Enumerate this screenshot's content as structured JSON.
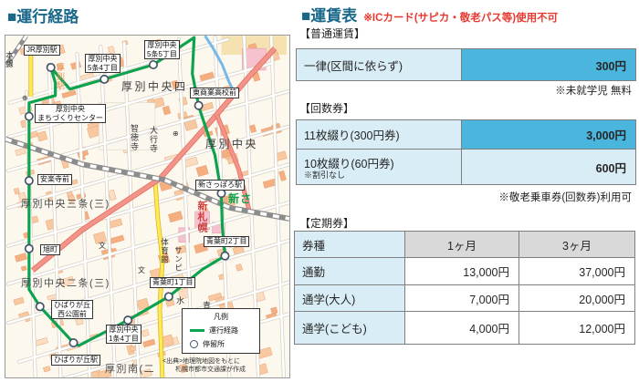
{
  "page": {
    "left_title": "■運行経路",
    "right_title": "■運賃表",
    "right_note": "※ICカード(サピカ・敬老パス等)使用不可"
  },
  "fares": {
    "basic": {
      "section": "【普通運賃】",
      "row_label": "一律(区間に依らず)",
      "row_value": "300円",
      "note": "※未就学児 無料"
    },
    "kaisuken": {
      "section": "【回数券】",
      "rows": [
        {
          "label": "11枚綴り(300円券)",
          "sub": "",
          "value": "3,000円"
        },
        {
          "label": "10枚綴り(60円券)",
          "sub": "※割引なし",
          "value": "600円"
        }
      ],
      "note": "※敬老乗車券(回数券)利用可"
    },
    "teiki": {
      "section": "【定期券】",
      "headers": [
        "券種",
        "1ヶ月",
        "3ヶ月"
      ],
      "rows": [
        {
          "type": "通勤",
          "m1": "13,000円",
          "m3": "37,000円"
        },
        {
          "type": "通学(大人)",
          "m1": "7,000円",
          "m3": "20,000円"
        },
        {
          "type": "通学(こども)",
          "m1": "4,000円",
          "m3": "12,000円"
        }
      ]
    }
  },
  "map": {
    "stops": [
      {
        "label": "JR厚別駅"
      },
      {
        "label": "厚別中央\n5条4丁目"
      },
      {
        "label": "厚別中央\n5条5丁目"
      },
      {
        "label": "東商業高校前"
      },
      {
        "label": "厚別中央\nまちづくりセンター"
      },
      {
        "label": "安楽寺前"
      },
      {
        "label": "旭町"
      },
      {
        "label": "ひばりが丘\n西公園前"
      },
      {
        "label": "厚別中央\n1条4丁目"
      },
      {
        "label": "ひばりが丘駅"
      },
      {
        "label": "青葉町1丁目"
      },
      {
        "label": "青葉町2丁目"
      },
      {
        "label": "新さっぽろ駅"
      }
    ],
    "areas": [
      {
        "text": "厚別中央四"
      },
      {
        "text": "厚別中央"
      },
      {
        "text": "厚別中央三条(三)"
      },
      {
        "text": "厚別中央二条(三)"
      },
      {
        "text": "厚別南(二"
      },
      {
        "text": "智徳寺"
      },
      {
        "text": "大行寺"
      },
      {
        "text": "新札幌"
      },
      {
        "text": "体育館"
      },
      {
        "text": "サンピ"
      },
      {
        "text": "水"
      },
      {
        "text": "青"
      },
      {
        "text": "厚別駅"
      },
      {
        "text": "本線"
      },
      {
        "text": "新さ"
      }
    ],
    "symbols": [
      {
        "glyph": "⊕"
      },
      {
        "glyph": "⊕"
      },
      {
        "glyph": "文"
      },
      {
        "glyph": "文"
      }
    ],
    "legend": {
      "title": "凡例",
      "route": "運行経路",
      "stop": "停留所"
    },
    "attribution1": "<出典>地理院地図をもとに",
    "attribution2": "札幌市都市交通課が作成"
  },
  "colors": {
    "title_teal": "#19688a",
    "warning_red": "#e8392f",
    "cell_light_blue": "#d9edf6",
    "cell_cyan": "#4ab6de",
    "cell_gray": "#d9d9d9",
    "route_green": "#0ca24e"
  }
}
